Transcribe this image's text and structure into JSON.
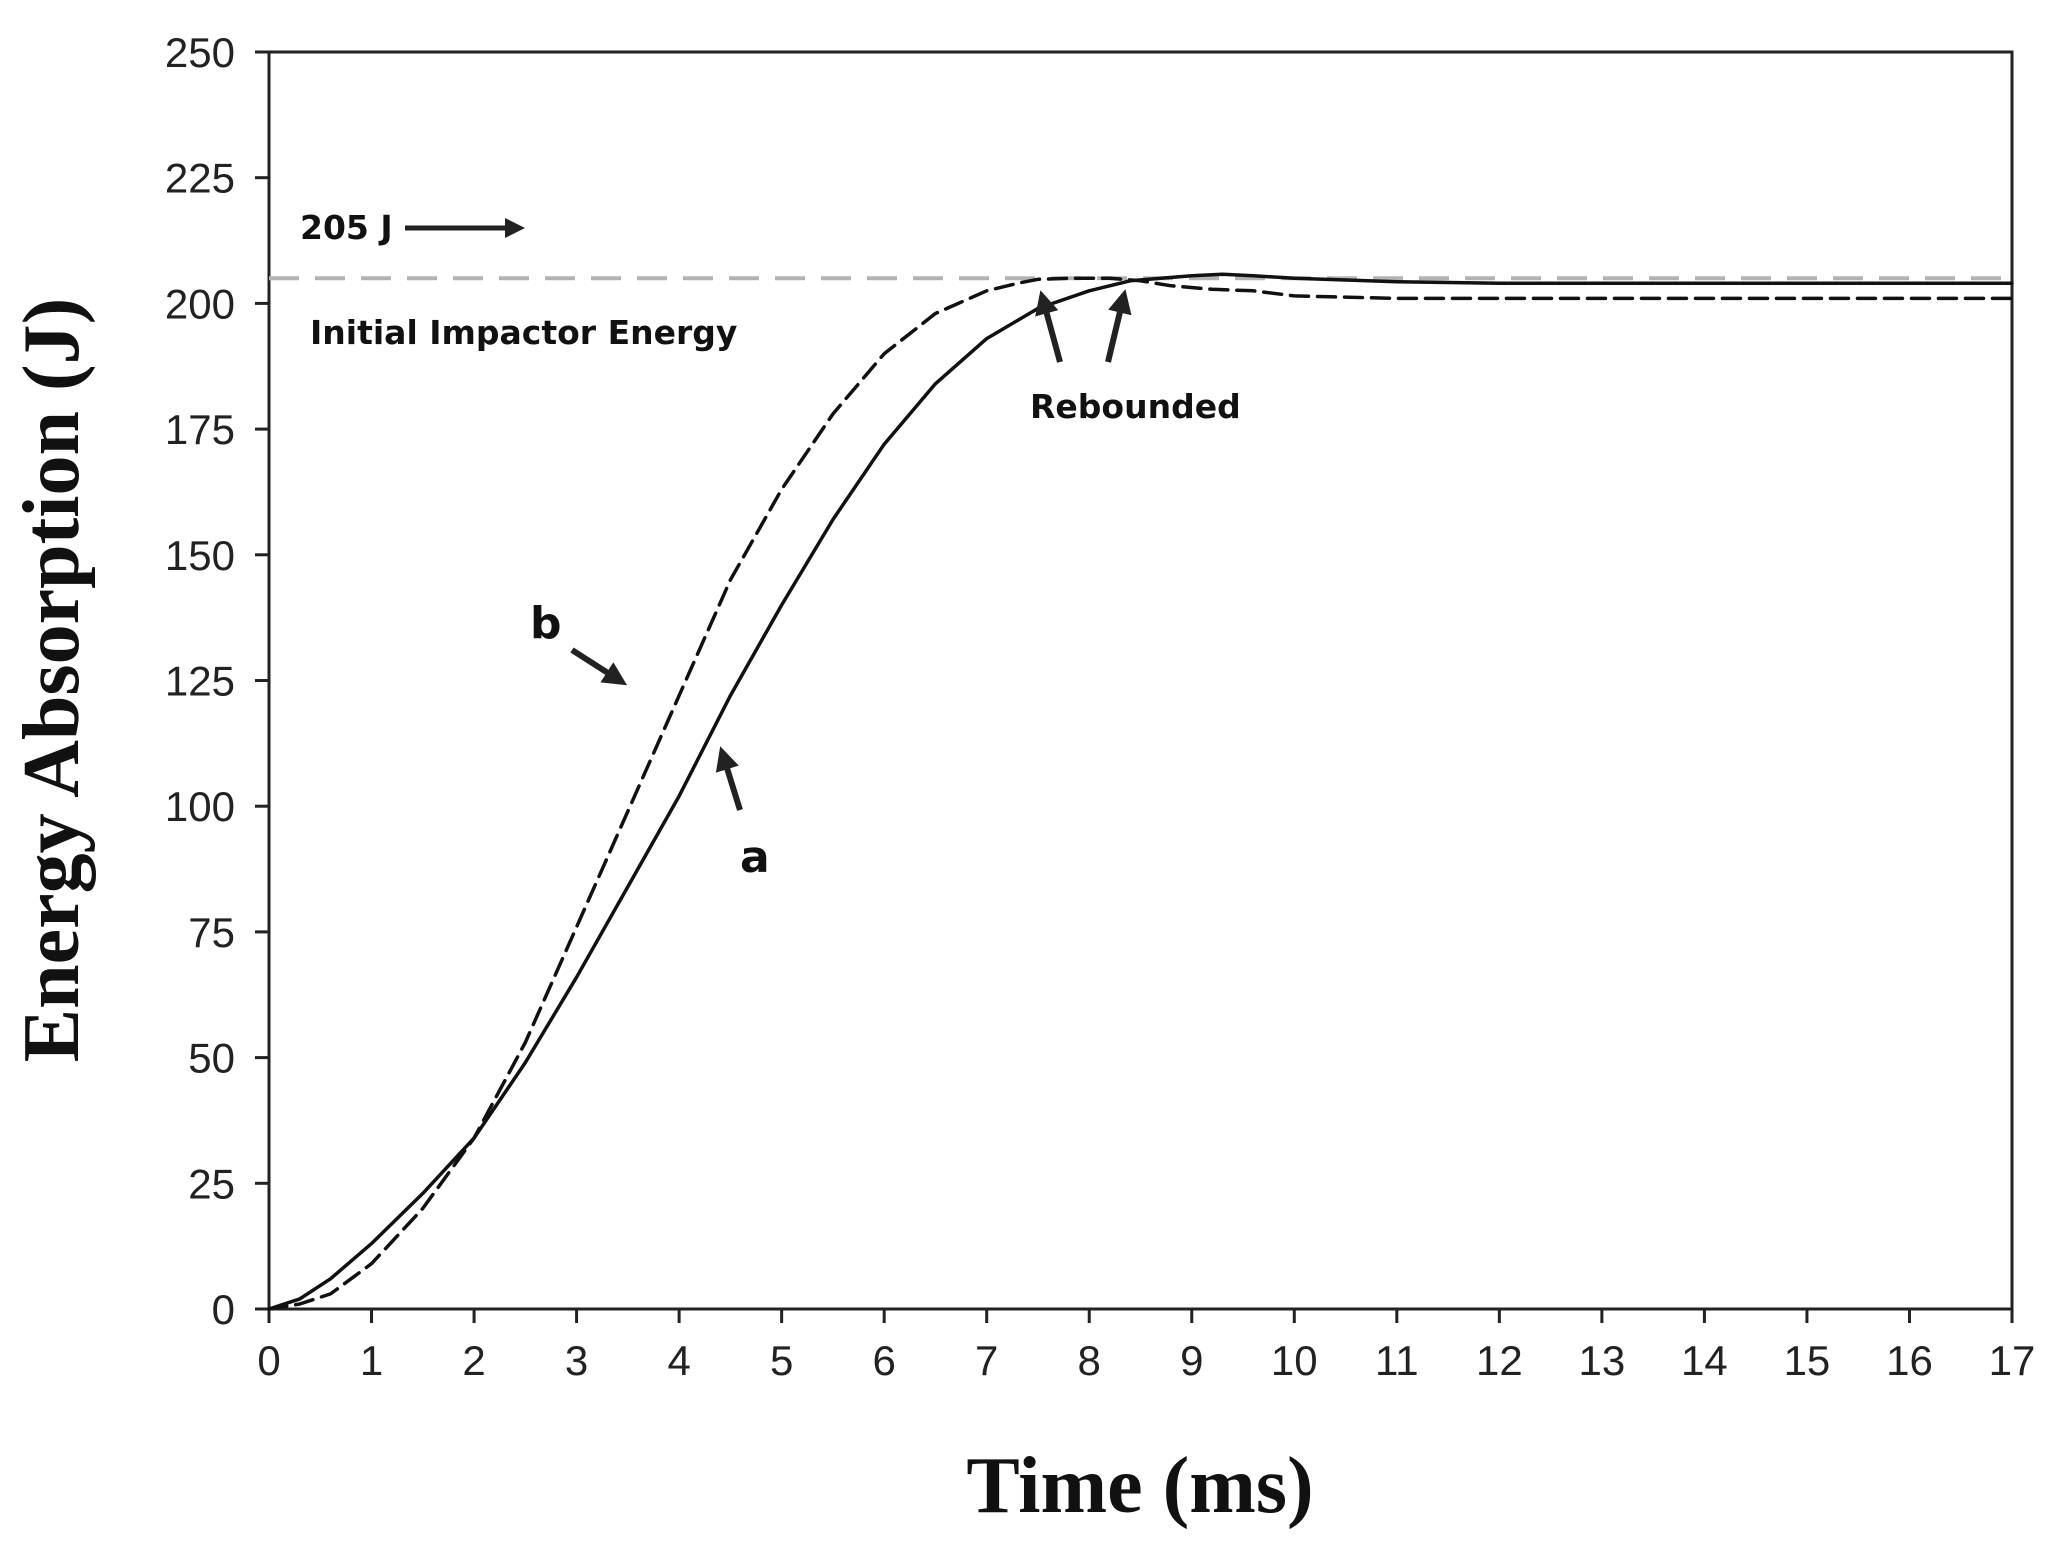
{
  "chart_data": {
    "type": "line",
    "title": "",
    "xlabel": "Time (ms)",
    "ylabel": "Energy Absorption (J)",
    "xlim": [
      0,
      17
    ],
    "ylim": [
      0,
      250
    ],
    "xticks": [
      0,
      1,
      2,
      3,
      4,
      5,
      6,
      7,
      8,
      9,
      10,
      11,
      12,
      13,
      14,
      15,
      16,
      17
    ],
    "yticks": [
      0,
      25,
      50,
      75,
      100,
      125,
      150,
      175,
      200,
      225,
      250
    ],
    "grid": false,
    "reference_line": {
      "y": 205,
      "style": "dashed",
      "color": "#b3b3b3"
    },
    "series": [
      {
        "name": "a",
        "style": "solid",
        "color": "#111111",
        "x": [
          0,
          0.3,
          0.6,
          1,
          1.5,
          2,
          2.5,
          3,
          3.5,
          4,
          4.5,
          5,
          5.5,
          6,
          6.5,
          7,
          7.5,
          8,
          8.4,
          8.7,
          9,
          9.3,
          9.6,
          10,
          11,
          12,
          13,
          14,
          15,
          16,
          17
        ],
        "y": [
          0,
          2,
          6,
          13,
          23,
          34,
          49,
          66,
          84,
          102,
          122,
          140,
          157,
          172,
          184,
          193,
          199,
          202.5,
          204.5,
          205,
          205.5,
          205.8,
          205.5,
          205,
          204.3,
          204,
          204,
          204,
          204,
          204,
          204
        ]
      },
      {
        "name": "b",
        "style": "dashed",
        "color": "#111111",
        "x": [
          0,
          0.3,
          0.6,
          1,
          1.5,
          2,
          2.5,
          3,
          3.5,
          4,
          4.5,
          5,
          5.5,
          6,
          6.5,
          7,
          7.3,
          7.5,
          7.8,
          8.2,
          8.5,
          8.8,
          9.2,
          9.6,
          10,
          11,
          12,
          13,
          14,
          15,
          16,
          17
        ],
        "y": [
          0,
          1,
          3,
          9,
          20,
          34,
          53,
          76,
          99,
          122,
          145,
          163,
          178,
          190,
          198,
          202.5,
          204,
          204.8,
          205,
          205,
          204.5,
          203.5,
          202.8,
          202.5,
          201.5,
          201,
          201,
          201,
          201,
          201,
          201,
          201
        ]
      }
    ],
    "annotations": {
      "energy_value": "205 J",
      "energy_caption": "Initial Impactor Energy",
      "rebound_label": "Rebounded",
      "curve_a_label": "a",
      "curve_b_label": "b"
    }
  }
}
